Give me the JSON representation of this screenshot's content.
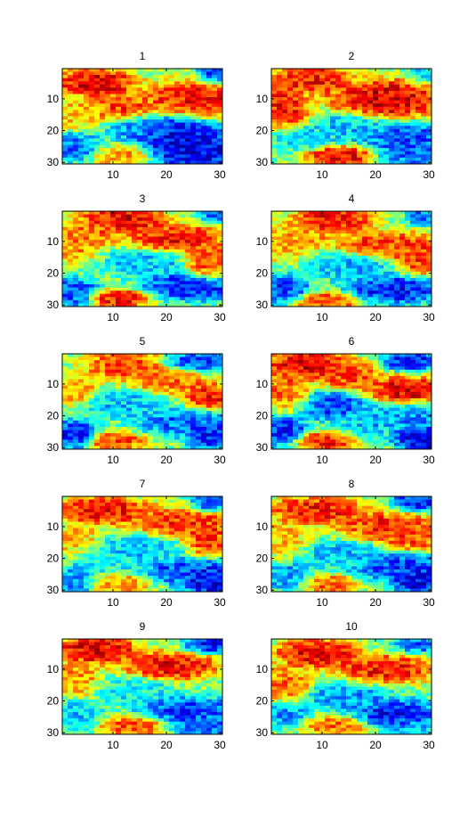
{
  "chart_data": {
    "type": "heatmap",
    "colormap": "jet",
    "grid": false,
    "layout": {
      "rows": 5,
      "cols": 2
    },
    "xlim": [
      0.5,
      30.5
    ],
    "ylim": [
      0.5,
      30.5
    ],
    "y_reversed": true,
    "xticks": [
      "10",
      "20",
      "30"
    ],
    "yticks": [
      "10",
      "20",
      "30"
    ],
    "cell_grid": {
      "columns": 30,
      "rows": 30
    },
    "panels": [
      {
        "title": "1",
        "blobs": [
          [
            7,
            5,
            0.95,
            5,
            3
          ],
          [
            12,
            13,
            0.85,
            4,
            3
          ],
          [
            25,
            10,
            0.9,
            6,
            4
          ],
          [
            3,
            14,
            0.7,
            3,
            4
          ],
          [
            12,
            28,
            0.75,
            4,
            2
          ],
          [
            22,
            21,
            0.08,
            5,
            4
          ],
          [
            25,
            26,
            0.05,
            6,
            4
          ],
          [
            15,
            19,
            0.25,
            4,
            3
          ],
          [
            3,
            25,
            0.2,
            3,
            3
          ],
          [
            29,
            2,
            0.15,
            2,
            2
          ]
        ]
      },
      {
        "title": "2",
        "blobs": [
          [
            8,
            4,
            0.9,
            5,
            3
          ],
          [
            22,
            10,
            0.97,
            7,
            4
          ],
          [
            3,
            13,
            0.9,
            3,
            5
          ],
          [
            13,
            28,
            0.95,
            4,
            2
          ],
          [
            15,
            19,
            0.3,
            5,
            3
          ],
          [
            26,
            22,
            0.15,
            5,
            3
          ],
          [
            27,
            27,
            0.2,
            4,
            3
          ],
          [
            6,
            22,
            0.35,
            4,
            3
          ],
          [
            29,
            2,
            0.3,
            2,
            2
          ]
        ]
      },
      {
        "title": "3",
        "blobs": [
          [
            12,
            3,
            0.95,
            5,
            3
          ],
          [
            6,
            7,
            0.8,
            4,
            3
          ],
          [
            22,
            9,
            0.9,
            6,
            3
          ],
          [
            28,
            17,
            0.85,
            3,
            4
          ],
          [
            3,
            12,
            0.75,
            3,
            3
          ],
          [
            11,
            28,
            0.9,
            4,
            2
          ],
          [
            16,
            17,
            0.3,
            5,
            3
          ],
          [
            25,
            24,
            0.1,
            6,
            3
          ],
          [
            3,
            26,
            0.15,
            3,
            3
          ],
          [
            29,
            1,
            0.2,
            2,
            2
          ]
        ]
      },
      {
        "title": "4",
        "blobs": [
          [
            12,
            3,
            0.92,
            5,
            3
          ],
          [
            6,
            8,
            0.75,
            4,
            3
          ],
          [
            22,
            11,
            0.85,
            6,
            3
          ],
          [
            28,
            15,
            0.85,
            3,
            4
          ],
          [
            3,
            12,
            0.7,
            3,
            3
          ],
          [
            11,
            29,
            0.85,
            4,
            2
          ],
          [
            15,
            18,
            0.3,
            5,
            3
          ],
          [
            24,
            25,
            0.1,
            6,
            3
          ],
          [
            3,
            25,
            0.15,
            3,
            3
          ],
          [
            29,
            2,
            0.2,
            2,
            2
          ]
        ]
      },
      {
        "title": "5",
        "blobs": [
          [
            12,
            4,
            0.85,
            5,
            3
          ],
          [
            3,
            12,
            0.75,
            3,
            3
          ],
          [
            20,
            9,
            0.8,
            5,
            3
          ],
          [
            28,
            14,
            0.9,
            3,
            3
          ],
          [
            10,
            28,
            0.85,
            4,
            2
          ],
          [
            12,
            16,
            0.3,
            5,
            3
          ],
          [
            24,
            22,
            0.2,
            6,
            3
          ],
          [
            28,
            26,
            0.1,
            3,
            3
          ],
          [
            3,
            26,
            0.1,
            3,
            3
          ],
          [
            26,
            3,
            0.15,
            4,
            2
          ]
        ]
      },
      {
        "title": "6",
        "blobs": [
          [
            7,
            4,
            0.95,
            5,
            3
          ],
          [
            15,
            7,
            0.85,
            4,
            3
          ],
          [
            26,
            12,
            0.95,
            5,
            3
          ],
          [
            3,
            12,
            0.8,
            3,
            4
          ],
          [
            10,
            28,
            0.9,
            4,
            2
          ],
          [
            12,
            17,
            0.15,
            4,
            3
          ],
          [
            25,
            20,
            0.25,
            6,
            3
          ],
          [
            28,
            27,
            0.05,
            3,
            3
          ],
          [
            3,
            25,
            0.12,
            3,
            3
          ],
          [
            27,
            3,
            0.12,
            4,
            2
          ],
          [
            19,
            22,
            0.3,
            3,
            3
          ]
        ]
      },
      {
        "title": "7",
        "blobs": [
          [
            8,
            5,
            0.92,
            6,
            3
          ],
          [
            23,
            9,
            0.88,
            6,
            3
          ],
          [
            28,
            14,
            0.85,
            3,
            4
          ],
          [
            3,
            14,
            0.7,
            3,
            4
          ],
          [
            11,
            28,
            0.75,
            4,
            2
          ],
          [
            15,
            17,
            0.3,
            5,
            3
          ],
          [
            25,
            24,
            0.15,
            6,
            3
          ],
          [
            28,
            27,
            0.05,
            3,
            3
          ],
          [
            8,
            20,
            0.35,
            4,
            3
          ],
          [
            3,
            27,
            0.25,
            3,
            3
          ],
          [
            28,
            2,
            0.15,
            2,
            2
          ]
        ]
      },
      {
        "title": "8",
        "blobs": [
          [
            9,
            5,
            0.9,
            6,
            3
          ],
          [
            22,
            10,
            0.88,
            6,
            3
          ],
          [
            27,
            13,
            0.85,
            4,
            3
          ],
          [
            3,
            13,
            0.7,
            3,
            4
          ],
          [
            11,
            28,
            0.8,
            4,
            2
          ],
          [
            14,
            19,
            0.3,
            5,
            3
          ],
          [
            25,
            23,
            0.15,
            6,
            3
          ],
          [
            28,
            27,
            0.05,
            3,
            3
          ],
          [
            28,
            2,
            0.1,
            3,
            2
          ],
          [
            4,
            26,
            0.25,
            3,
            3
          ]
        ]
      },
      {
        "title": "9",
        "blobs": [
          [
            7,
            4,
            0.95,
            5,
            3
          ],
          [
            21,
            9,
            0.92,
            6,
            3
          ],
          [
            3,
            13,
            0.75,
            3,
            4
          ],
          [
            14,
            28,
            0.85,
            4,
            2
          ],
          [
            14,
            17,
            0.35,
            5,
            3
          ],
          [
            24,
            23,
            0.15,
            6,
            3
          ],
          [
            28,
            2,
            0.1,
            3,
            2
          ],
          [
            3,
            24,
            0.3,
            3,
            3
          ],
          [
            27,
            28,
            0.2,
            4,
            2
          ]
        ]
      },
      {
        "title": "10",
        "blobs": [
          [
            9,
            5,
            0.95,
            5,
            3
          ],
          [
            22,
            10,
            0.9,
            6,
            3
          ],
          [
            3,
            15,
            0.8,
            3,
            4
          ],
          [
            12,
            28,
            0.8,
            4,
            2
          ],
          [
            15,
            19,
            0.25,
            5,
            3
          ],
          [
            24,
            24,
            0.1,
            5,
            3
          ],
          [
            3,
            24,
            0.25,
            3,
            3
          ],
          [
            28,
            2,
            0.2,
            3,
            2
          ],
          [
            27,
            29,
            0.3,
            3,
            2
          ]
        ]
      }
    ]
  }
}
